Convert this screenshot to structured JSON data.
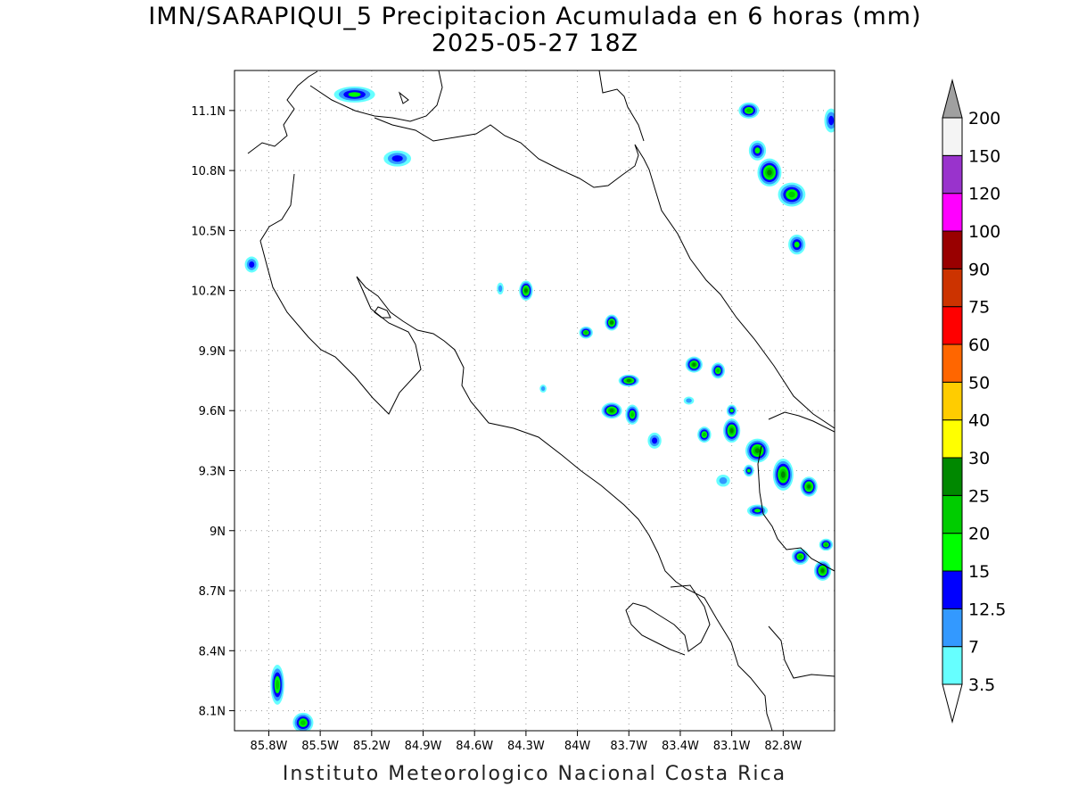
{
  "title": {
    "line1": "IMN/SARAPIQUI_5 Precipitacion Acumulada en 6 horas (mm)",
    "line2": "2025-05-27 18Z"
  },
  "footer": "Instituto Meteorologico Nacional Costa Rica",
  "map": {
    "lon_range": [
      -86.0,
      -82.5
    ],
    "lat_range": [
      8.0,
      11.3
    ],
    "x_ticks": [
      {
        "value": -85.8,
        "label": "85.8W"
      },
      {
        "value": -85.5,
        "label": "85.5W"
      },
      {
        "value": -85.2,
        "label": "85.2W"
      },
      {
        "value": -84.9,
        "label": "84.9W"
      },
      {
        "value": -84.6,
        "label": "84.6W"
      },
      {
        "value": -84.3,
        "label": "84.3W"
      },
      {
        "value": -84.0,
        "label": "84W"
      },
      {
        "value": -83.7,
        "label": "83.7W"
      },
      {
        "value": -83.4,
        "label": "83.4W"
      },
      {
        "value": -83.1,
        "label": "83.1W"
      },
      {
        "value": -82.8,
        "label": "82.8W"
      }
    ],
    "y_ticks": [
      {
        "value": 11.1,
        "label": "11.1N"
      },
      {
        "value": 10.8,
        "label": "10.8N"
      },
      {
        "value": 10.5,
        "label": "10.5N"
      },
      {
        "value": 10.2,
        "label": "10.2N"
      },
      {
        "value": 9.9,
        "label": "9.9N"
      },
      {
        "value": 9.6,
        "label": "9.6N"
      },
      {
        "value": 9.3,
        "label": "9.3N"
      },
      {
        "value": 9.0,
        "label": "9N"
      },
      {
        "value": 8.7,
        "label": "8.7N"
      },
      {
        "value": 8.4,
        "label": "8.4N"
      },
      {
        "value": 8.1,
        "label": "8.1N"
      }
    ],
    "grid": "dotted"
  },
  "colorbar": {
    "levels": [
      {
        "label": "3.5",
        "color": "#66ffff"
      },
      {
        "label": "7",
        "color": "#3399ff"
      },
      {
        "label": "12.5",
        "color": "#0000ff"
      },
      {
        "label": "15",
        "color": "#00ff00"
      },
      {
        "label": "20",
        "color": "#00cc00"
      },
      {
        "label": "25",
        "color": "#008800"
      },
      {
        "label": "30",
        "color": "#ffff00"
      },
      {
        "label": "40",
        "color": "#ffcc00"
      },
      {
        "label": "50",
        "color": "#ff6600"
      },
      {
        "label": "60",
        "color": "#ff0000"
      },
      {
        "label": "75",
        "color": "#cc3300"
      },
      {
        "label": "90",
        "color": "#990000"
      },
      {
        "label": "100",
        "color": "#ff00ff"
      },
      {
        "label": "120",
        "color": "#9933cc"
      },
      {
        "label": "150",
        "color": "#f4f4f4"
      },
      {
        "label": "200",
        "color": "#a0a0a0"
      }
    ],
    "below_color": "#ffffff",
    "above_color": "#a0a0a0"
  },
  "precip_cells": [
    {
      "lon": -85.3,
      "lat": 11.18,
      "level": 3,
      "rx": 0.12,
      "ry": 0.04
    },
    {
      "lon": -85.05,
      "lat": 10.86,
      "level": 2,
      "rx": 0.08,
      "ry": 0.04
    },
    {
      "lon": -85.9,
      "lat": 10.33,
      "level": 2,
      "rx": 0.04,
      "ry": 0.04
    },
    {
      "lon": -84.3,
      "lat": 10.2,
      "level": 5,
      "rx": 0.04,
      "ry": 0.05
    },
    {
      "lon": -84.45,
      "lat": 10.21,
      "level": 1,
      "rx": 0.02,
      "ry": 0.03
    },
    {
      "lon": -83.95,
      "lat": 9.99,
      "level": 4,
      "rx": 0.04,
      "ry": 0.03
    },
    {
      "lon": -83.8,
      "lat": 10.04,
      "level": 5,
      "rx": 0.04,
      "ry": 0.04
    },
    {
      "lon": -84.2,
      "lat": 9.71,
      "level": 1,
      "rx": 0.02,
      "ry": 0.02
    },
    {
      "lon": -83.7,
      "lat": 9.75,
      "level": 5,
      "rx": 0.06,
      "ry": 0.03
    },
    {
      "lon": -83.8,
      "lat": 9.6,
      "level": 5,
      "rx": 0.06,
      "ry": 0.04
    },
    {
      "lon": -83.68,
      "lat": 9.58,
      "level": 4,
      "rx": 0.04,
      "ry": 0.05
    },
    {
      "lon": -83.55,
      "lat": 9.45,
      "level": 2,
      "rx": 0.04,
      "ry": 0.04
    },
    {
      "lon": -83.32,
      "lat": 9.83,
      "level": 5,
      "rx": 0.05,
      "ry": 0.04
    },
    {
      "lon": -83.18,
      "lat": 9.8,
      "level": 4,
      "rx": 0.04,
      "ry": 0.04
    },
    {
      "lon": -83.1,
      "lat": 9.6,
      "level": 3,
      "rx": 0.03,
      "ry": 0.03
    },
    {
      "lon": -83.1,
      "lat": 9.5,
      "level": 5,
      "rx": 0.05,
      "ry": 0.06
    },
    {
      "lon": -83.26,
      "lat": 9.48,
      "level": 4,
      "rx": 0.04,
      "ry": 0.04
    },
    {
      "lon": -82.95,
      "lat": 9.4,
      "level": 5,
      "rx": 0.07,
      "ry": 0.06
    },
    {
      "lon": -82.8,
      "lat": 9.28,
      "level": 5,
      "rx": 0.06,
      "ry": 0.08
    },
    {
      "lon": -82.65,
      "lat": 9.22,
      "level": 5,
      "rx": 0.05,
      "ry": 0.05
    },
    {
      "lon": -83.0,
      "lat": 9.3,
      "level": 3,
      "rx": 0.03,
      "ry": 0.03
    },
    {
      "lon": -82.95,
      "lat": 9.1,
      "level": 3,
      "rx": 0.06,
      "ry": 0.03
    },
    {
      "lon": -82.7,
      "lat": 8.87,
      "level": 4,
      "rx": 0.05,
      "ry": 0.04
    },
    {
      "lon": -82.57,
      "lat": 8.8,
      "level": 5,
      "rx": 0.05,
      "ry": 0.05
    },
    {
      "lon": -82.55,
      "lat": 8.93,
      "level": 4,
      "rx": 0.04,
      "ry": 0.03
    },
    {
      "lon": -83.0,
      "lat": 11.1,
      "level": 4,
      "rx": 0.06,
      "ry": 0.04
    },
    {
      "lon": -82.95,
      "lat": 10.9,
      "level": 3,
      "rx": 0.05,
      "ry": 0.05
    },
    {
      "lon": -82.88,
      "lat": 10.79,
      "level": 5,
      "rx": 0.07,
      "ry": 0.07
    },
    {
      "lon": -82.75,
      "lat": 10.68,
      "level": 4,
      "rx": 0.08,
      "ry": 0.06
    },
    {
      "lon": -82.72,
      "lat": 10.43,
      "level": 3,
      "rx": 0.05,
      "ry": 0.05
    },
    {
      "lon": -82.52,
      "lat": 11.05,
      "level": 2,
      "rx": 0.04,
      "ry": 0.06
    },
    {
      "lon": -85.75,
      "lat": 8.23,
      "level": 4,
      "rx": 0.04,
      "ry": 0.1
    },
    {
      "lon": -85.6,
      "lat": 8.04,
      "level": 4,
      "rx": 0.06,
      "ry": 0.05
    },
    {
      "lon": -83.35,
      "lat": 9.65,
      "level": 1,
      "rx": 0.03,
      "ry": 0.02
    },
    {
      "lon": -83.15,
      "lat": 9.25,
      "level": 1,
      "rx": 0.04,
      "ry": 0.03
    }
  ]
}
